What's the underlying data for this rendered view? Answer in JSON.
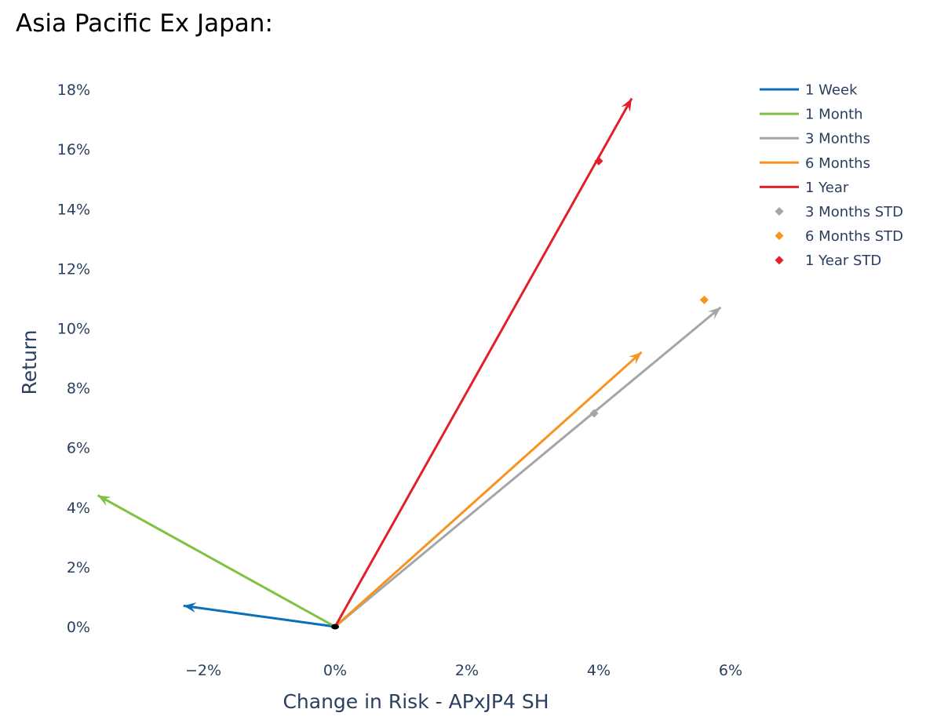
{
  "title": "Asia Pacific Ex Japan:",
  "chart_data": {
    "type": "line",
    "title": "Asia Pacific Ex Japan:",
    "xlabel": "Change in Risk - APxJP4 SH",
    "ylabel": "Return",
    "xlim": [
      -3.6,
      6.6
    ],
    "ylim": [
      -0.9,
      18.6
    ],
    "x_ticks": [
      -2,
      0,
      2,
      4,
      6
    ],
    "x_tick_labels": [
      "−2%",
      "0%",
      "2%",
      "4%",
      "6%"
    ],
    "y_ticks": [
      0,
      2,
      4,
      6,
      8,
      10,
      12,
      14,
      16,
      18
    ],
    "y_tick_labels": [
      "0%",
      "2%",
      "4%",
      "6%",
      "8%",
      "10%",
      "12%",
      "14%",
      "16%",
      "18%"
    ],
    "grid": false,
    "legend_position": "top-right",
    "origin": [
      0,
      0
    ],
    "series": [
      {
        "name": "1 Week",
        "kind": "arrow",
        "color": "#0a6fb7",
        "x": [
          0,
          -2.3
        ],
        "y": [
          0,
          0.7
        ]
      },
      {
        "name": "1 Month",
        "kind": "arrow",
        "color": "#7fc241",
        "x": [
          0,
          -3.6
        ],
        "y": [
          0,
          4.4
        ]
      },
      {
        "name": "3 Months",
        "kind": "arrow",
        "color": "#a6a6a6",
        "x": [
          0,
          5.85
        ],
        "y": [
          0,
          10.7
        ]
      },
      {
        "name": "6 Months",
        "kind": "arrow",
        "color": "#f7931e",
        "x": [
          0,
          4.65
        ],
        "y": [
          0,
          9.2
        ]
      },
      {
        "name": "1 Year",
        "kind": "arrow",
        "color": "#e3202a",
        "x": [
          0,
          4.5
        ],
        "y": [
          0,
          17.7
        ]
      },
      {
        "name": "3 Months STD",
        "kind": "marker",
        "color": "#a6a6a6",
        "x": [
          3.93
        ],
        "y": [
          7.15
        ]
      },
      {
        "name": "6 Months STD",
        "kind": "marker",
        "color": "#f7931e",
        "x": [
          5.6
        ],
        "y": [
          10.95
        ]
      },
      {
        "name": "1 Year STD",
        "kind": "marker",
        "color": "#e3202a",
        "x": [
          4.0
        ],
        "y": [
          15.6
        ]
      }
    ]
  }
}
